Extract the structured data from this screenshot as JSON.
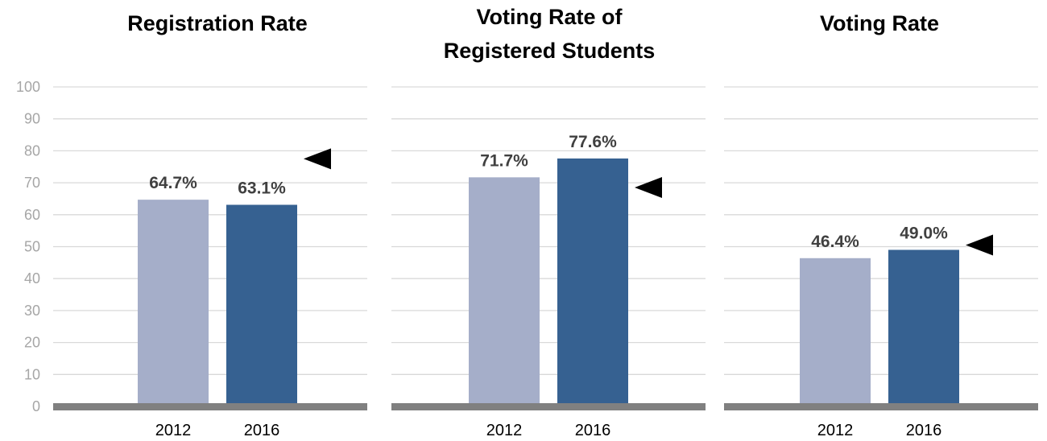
{
  "chart_data": [
    {
      "type": "bar",
      "title": "Registration Rate",
      "categories": [
        "2012",
        "2016"
      ],
      "values": [
        64.7,
        63.1
      ],
      "data_labels": [
        "64.7%",
        "63.1%"
      ],
      "ylim": [
        0,
        100
      ],
      "yticks": [
        "0",
        "10",
        "20",
        "30",
        "40",
        "50",
        "60",
        "70",
        "80",
        "90",
        "100"
      ],
      "grid": true,
      "arrow_marker": {
        "direction": "left",
        "y": 77.5
      }
    },
    {
      "type": "bar",
      "title": "Voting Rate of Registered Students",
      "categories": [
        "2012",
        "2016"
      ],
      "values": [
        71.7,
        77.6
      ],
      "data_labels": [
        "71.7%",
        "77.6%"
      ],
      "ylim": [
        0,
        100
      ],
      "grid": true,
      "arrow_marker": {
        "direction": "left",
        "y": 68.5
      }
    },
    {
      "type": "bar",
      "title": "Voting Rate",
      "categories": [
        "2012",
        "2016"
      ],
      "values": [
        46.4,
        49.0
      ],
      "data_labels": [
        "46.4%",
        "49.0%"
      ],
      "ylim": [
        0,
        100
      ],
      "grid": true,
      "arrow_marker": {
        "direction": "left",
        "y": 50.5
      }
    }
  ],
  "colors": {
    "bar_2012": "#a5aec9",
    "bar_2016": "#366191",
    "grid": "#d9d9d9",
    "baseline": "#808080",
    "arrow": "#000000"
  }
}
